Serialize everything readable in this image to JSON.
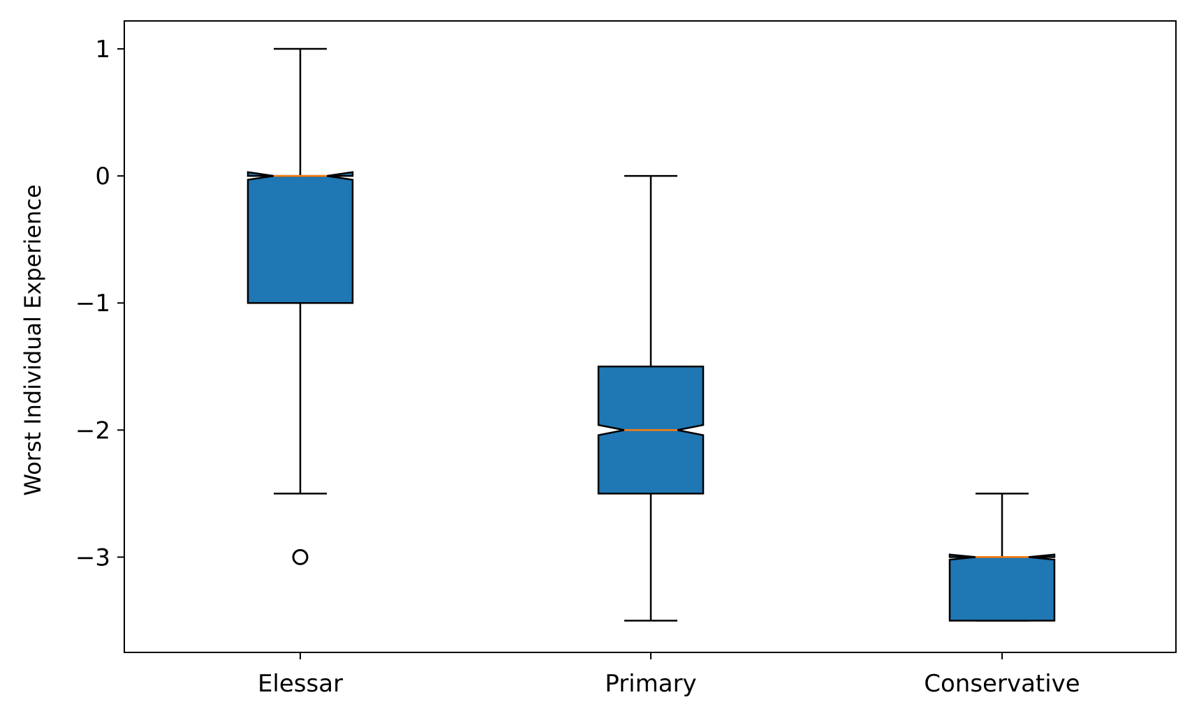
{
  "chart_data": {
    "type": "boxplot",
    "notched": true,
    "title": "",
    "xlabel": "",
    "ylabel": "Worst Individual Experience",
    "ylim": [
      -3.75,
      1.22
    ],
    "yticks": [
      1,
      0,
      -1,
      -2,
      -3
    ],
    "ytick_labels": [
      "1",
      "0",
      "−1",
      "−2",
      "−3"
    ],
    "categories": [
      "Elessar",
      "Primary",
      "Conservative"
    ],
    "boxes": [
      {
        "category": "Elessar",
        "whisker_low": -2.5,
        "q1": -1.0,
        "median": 0.0,
        "q3": 0.0,
        "whisker_high": 1.0,
        "notch_low": -0.03,
        "notch_high": 0.03,
        "outliers": [
          -3.0
        ]
      },
      {
        "category": "Primary",
        "whisker_low": -3.5,
        "q1": -2.5,
        "median": -2.0,
        "q3": -1.5,
        "whisker_high": 0.0,
        "notch_low": -2.04,
        "notch_high": -1.96,
        "outliers": []
      },
      {
        "category": "Conservative",
        "whisker_low": -3.5,
        "q1": -3.5,
        "median": -3.0,
        "q3": -3.0,
        "whisker_high": -2.5,
        "notch_low": -3.02,
        "notch_high": -2.98,
        "outliers": []
      }
    ],
    "grid": false,
    "colors": {
      "box_fill": "#1f77b4",
      "median": "#ff7f0e",
      "edge": "#000000"
    }
  }
}
